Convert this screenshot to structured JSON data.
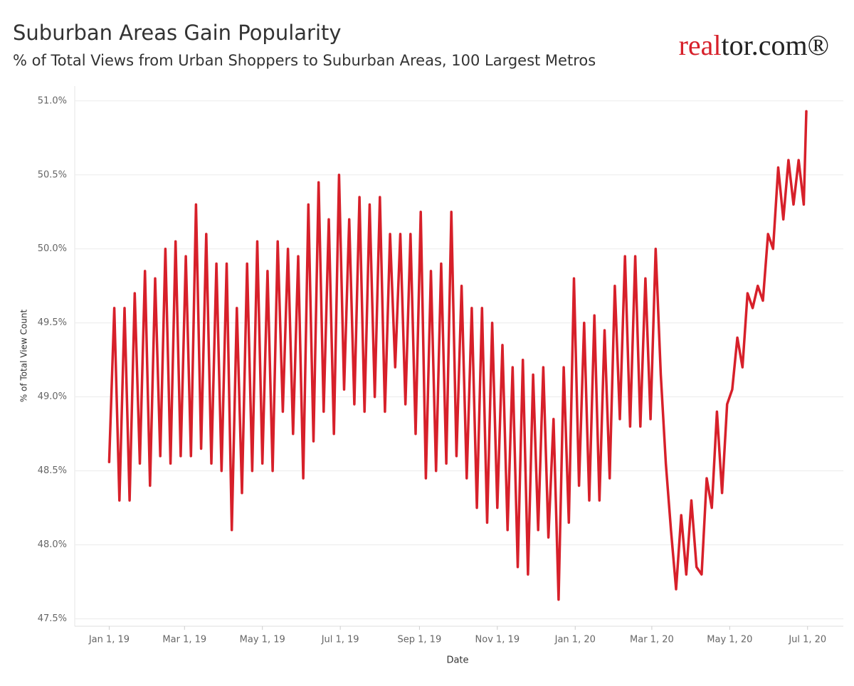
{
  "logo": {
    "primary": "real",
    "secondary": "tor.com®"
  },
  "chart_data": {
    "type": "line",
    "title": "Suburban Areas Gain Popularity",
    "subtitle": "% of Total Views from Urban Shoppers to Suburban Areas, 100 Largest Metros",
    "x_label": "Date",
    "y_label": "% of Total View Count",
    "color": "#d7202a",
    "grid": true,
    "xlim": [
      "2018-12-05",
      "2020-07-29"
    ],
    "xticks": [
      {
        "value": "2019-01-01",
        "label": "Jan 1, 19"
      },
      {
        "value": "2019-03-01",
        "label": "Mar 1, 19"
      },
      {
        "value": "2019-05-01",
        "label": "May 1, 19"
      },
      {
        "value": "2019-07-01",
        "label": "Jul 1, 19"
      },
      {
        "value": "2019-09-01",
        "label": "Sep 1, 19"
      },
      {
        "value": "2019-11-01",
        "label": "Nov 1, 19"
      },
      {
        "value": "2020-01-01",
        "label": "Jan 1, 20"
      },
      {
        "value": "2020-03-01",
        "label": "Mar 1, 20"
      },
      {
        "value": "2020-05-01",
        "label": "May 1, 20"
      },
      {
        "value": "2020-07-01",
        "label": "Jul 1, 20"
      }
    ],
    "ylim": [
      47.45,
      51.1
    ],
    "yticks": [
      {
        "value": 47.5,
        "label": "47.5%"
      },
      {
        "value": 48.0,
        "label": "48.0%"
      },
      {
        "value": 48.5,
        "label": "48.5%"
      },
      {
        "value": 49.0,
        "label": "49.0%"
      },
      {
        "value": 49.5,
        "label": "49.5%"
      },
      {
        "value": 50.0,
        "label": "50.0%"
      },
      {
        "value": 50.5,
        "label": "50.5%"
      },
      {
        "value": 51.0,
        "label": "51.0%"
      }
    ],
    "x": [
      "2019-01-01",
      "2019-01-05",
      "2019-01-09",
      "2019-01-13",
      "2019-01-17",
      "2019-01-21",
      "2019-01-25",
      "2019-01-29",
      "2019-02-02",
      "2019-02-06",
      "2019-02-10",
      "2019-02-14",
      "2019-02-18",
      "2019-02-22",
      "2019-02-26",
      "2019-03-02",
      "2019-03-06",
      "2019-03-10",
      "2019-03-14",
      "2019-03-18",
      "2019-03-22",
      "2019-03-26",
      "2019-03-30",
      "2019-04-03",
      "2019-04-07",
      "2019-04-11",
      "2019-04-15",
      "2019-04-19",
      "2019-04-23",
      "2019-04-27",
      "2019-05-01",
      "2019-05-05",
      "2019-05-09",
      "2019-05-13",
      "2019-05-17",
      "2019-05-21",
      "2019-05-25",
      "2019-05-29",
      "2019-06-02",
      "2019-06-06",
      "2019-06-10",
      "2019-06-14",
      "2019-06-18",
      "2019-06-22",
      "2019-06-26",
      "2019-06-30",
      "2019-07-04",
      "2019-07-08",
      "2019-07-12",
      "2019-07-16",
      "2019-07-20",
      "2019-07-24",
      "2019-07-28",
      "2019-08-01",
      "2019-08-05",
      "2019-08-09",
      "2019-08-13",
      "2019-08-17",
      "2019-08-21",
      "2019-08-25",
      "2019-08-29",
      "2019-09-02",
      "2019-09-06",
      "2019-09-10",
      "2019-09-14",
      "2019-09-18",
      "2019-09-22",
      "2019-09-26",
      "2019-09-30",
      "2019-10-04",
      "2019-10-08",
      "2019-10-12",
      "2019-10-16",
      "2019-10-20",
      "2019-10-24",
      "2019-10-28",
      "2019-11-01",
      "2019-11-05",
      "2019-11-09",
      "2019-11-13",
      "2019-11-17",
      "2019-11-21",
      "2019-11-25",
      "2019-11-29",
      "2019-12-03",
      "2019-12-07",
      "2019-12-11",
      "2019-12-15",
      "2019-12-19",
      "2019-12-23",
      "2019-12-27",
      "2019-12-31",
      "2020-01-04",
      "2020-01-08",
      "2020-01-12",
      "2020-01-16",
      "2020-01-20",
      "2020-01-24",
      "2020-01-28",
      "2020-02-01",
      "2020-02-05",
      "2020-02-09",
      "2020-02-13",
      "2020-02-17",
      "2020-02-21",
      "2020-02-25",
      "2020-02-29",
      "2020-03-04",
      "2020-03-08",
      "2020-03-12",
      "2020-03-16",
      "2020-03-20",
      "2020-03-24",
      "2020-03-28",
      "2020-04-01",
      "2020-04-05",
      "2020-04-09",
      "2020-04-13",
      "2020-04-17",
      "2020-04-21",
      "2020-04-25",
      "2020-04-29",
      "2020-05-03",
      "2020-05-07",
      "2020-05-11",
      "2020-05-15",
      "2020-05-19",
      "2020-05-23",
      "2020-05-27",
      "2020-05-31",
      "2020-06-04",
      "2020-06-08",
      "2020-06-12",
      "2020-06-16",
      "2020-06-20",
      "2020-06-24",
      "2020-06-28",
      "2020-06-30"
    ],
    "values": [
      48.56,
      49.6,
      48.3,
      49.6,
      48.3,
      49.7,
      48.55,
      49.85,
      48.4,
      49.8,
      48.6,
      50.0,
      48.55,
      50.05,
      48.6,
      49.95,
      48.6,
      50.3,
      48.65,
      50.1,
      48.55,
      49.9,
      48.5,
      49.9,
      48.1,
      49.6,
      48.35,
      49.9,
      48.5,
      50.05,
      48.55,
      49.85,
      48.5,
      50.05,
      48.9,
      50.0,
      48.75,
      49.95,
      48.45,
      50.3,
      48.7,
      50.45,
      48.9,
      50.2,
      48.75,
      50.5,
      49.05,
      50.2,
      48.95,
      50.35,
      48.9,
      50.3,
      49.0,
      50.35,
      48.9,
      50.1,
      49.2,
      50.1,
      48.95,
      50.1,
      48.75,
      50.25,
      48.45,
      49.85,
      48.5,
      49.9,
      48.55,
      50.25,
      48.6,
      49.75,
      48.45,
      49.6,
      48.25,
      49.6,
      48.15,
      49.5,
      48.25,
      49.35,
      48.1,
      49.2,
      47.85,
      49.25,
      47.8,
      49.15,
      48.1,
      49.2,
      48.05,
      48.85,
      47.63,
      49.2,
      48.15,
      49.8,
      48.4,
      49.5,
      48.3,
      49.55,
      48.3,
      49.45,
      48.45,
      49.75,
      48.85,
      49.95,
      48.8,
      49.95,
      48.8,
      49.8,
      48.85,
      50.0,
      49.15,
      48.55,
      48.1,
      47.7,
      48.2,
      47.8,
      48.3,
      47.85,
      47.8,
      48.45,
      48.25,
      48.9,
      48.35,
      48.95,
      49.05,
      49.4,
      49.2,
      49.7,
      49.6,
      49.75,
      49.65,
      50.1,
      50.0,
      50.55,
      50.2,
      50.6,
      50.3,
      50.6,
      50.3,
      50.93
    ]
  }
}
